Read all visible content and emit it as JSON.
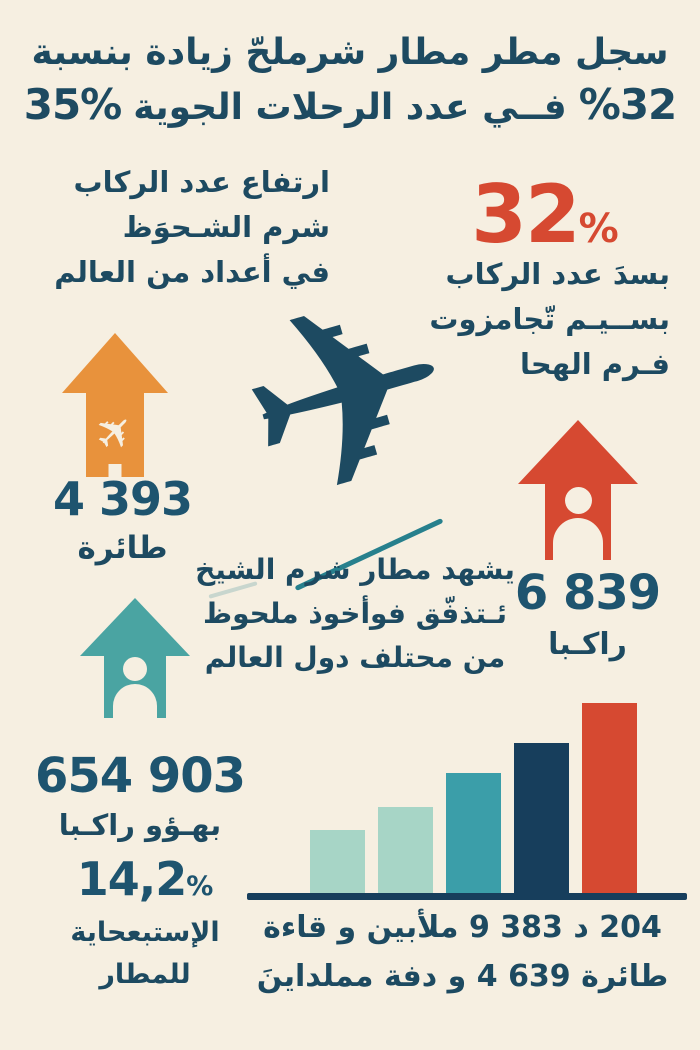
{
  "colors": {
    "background": "#f6efe1",
    "text_navy": "#1d4a61",
    "number_navy": "#1e546f",
    "red": "#d64931",
    "orange": "#e8923c",
    "teal": "#4aa4a2",
    "motion_line_light": "#c8d6ce",
    "motion_line_teal": "#27808d"
  },
  "icons": {
    "airplane": "✈"
  },
  "title": {
    "line1": "سجل مطر مطار شرملحّ زيادة بنسبة",
    "line2_left": "35%",
    "line2_middle": "فــي عدد الرحلات الجوية",
    "line2_right": "%32"
  },
  "left_block": {
    "lines": [
      "ارتفاع عدد الركاب",
      "شرم الشـحوَظ",
      "في أعداد من العالم"
    ]
  },
  "stat32": {
    "number": "32",
    "percent_sign": "%",
    "lines": [
      "بسدَ عدد الركاب",
      "بســيـم تّجامزوت",
      "فـرم الهحا"
    ]
  },
  "planes_stat": {
    "value": "4 393",
    "label": "طائرة"
  },
  "passengers_stat": {
    "value": "6 839",
    "label": "راكـبا"
  },
  "mid_block": {
    "lines": [
      "يشهد مطار شرم الشيخ",
      "ئـتذفّق فوأخوذ ملحوظ",
      "من محتلف دول العالم"
    ]
  },
  "total_stat": {
    "value": "654 903",
    "label": "بهـؤو راكـبا"
  },
  "percent_stat": {
    "number": "14,2",
    "percent_sign": "%",
    "lines": [
      "الإستبعحاية",
      "للمطار"
    ]
  },
  "caption": {
    "line1": "204 د 383 9 ملأبين و قاءة",
    "line2": "طائرة 639 4 و دفة مملداينَ"
  },
  "chart_data": {
    "type": "bar",
    "categories": [
      "1",
      "2",
      "3",
      "4",
      "5"
    ],
    "values": [
      63,
      86,
      120,
      150,
      190
    ],
    "value_unit": "relative height (px), no numeric axis shown",
    "colors": [
      "#a7d5c6",
      "#a7d5c6",
      "#3b9ea9",
      "#173e5c",
      "#d64931"
    ],
    "title": "",
    "xlabel": "",
    "ylabel": "",
    "grid": false,
    "legend": false,
    "baseline_color": "#173e5c",
    "annotations": [
      "204 د 383 9 ملأبين و قاءة",
      "طائرة 639 4 و دفة مملداينَ"
    ]
  }
}
